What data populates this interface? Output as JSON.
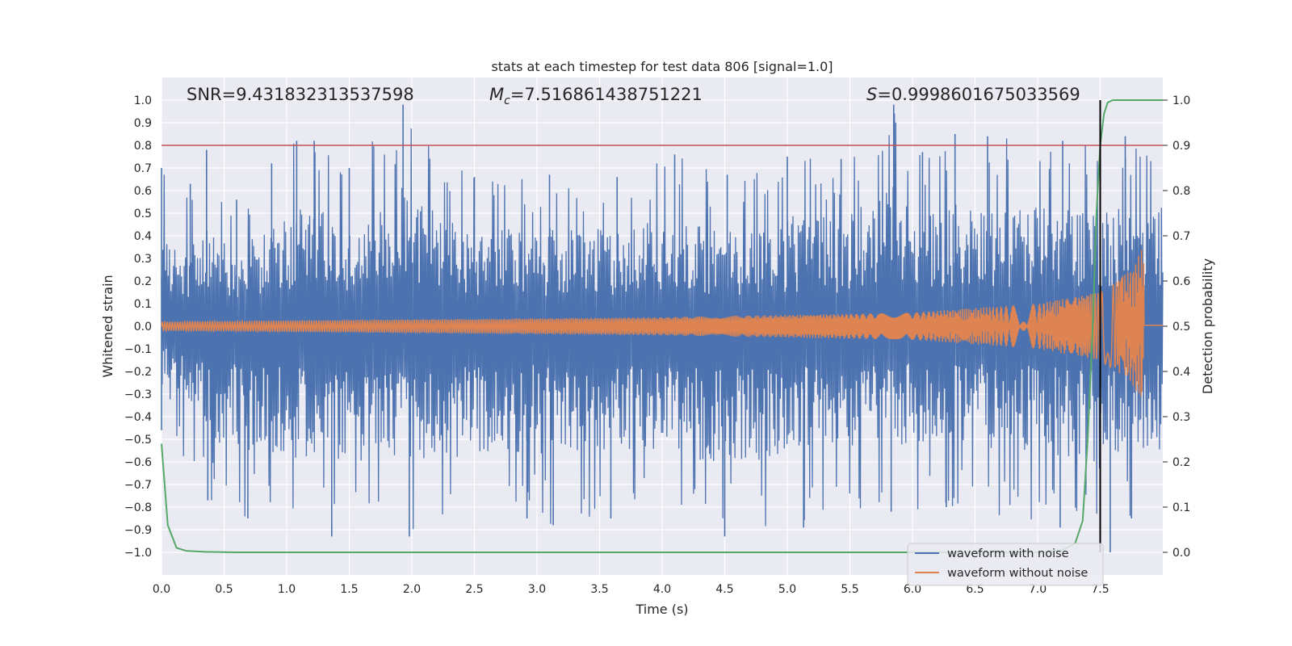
{
  "chart_data": {
    "type": "line",
    "title": "stats at each timestep for test data 806 [signal=1.0]",
    "xlabel": "Time (s)",
    "ylabel_left": "Whitened strain",
    "ylabel_right": "Detection probability",
    "xlim": [
      0.0,
      8.0
    ],
    "ylim_left": [
      -1.1,
      1.1
    ],
    "ylim_right": [
      -0.05,
      1.05
    ],
    "x_ticks": [
      "0.0",
      "0.5",
      "1.0",
      "1.5",
      "2.0",
      "2.5",
      "3.0",
      "3.5",
      "4.0",
      "4.5",
      "5.0",
      "5.5",
      "6.0",
      "6.5",
      "7.0",
      "7.5"
    ],
    "y_ticks_left": [
      "1.0",
      "0.9",
      "0.8",
      "0.7",
      "0.6",
      "0.5",
      "0.4",
      "0.3",
      "0.2",
      "0.1",
      "0.0",
      "−0.1",
      "−0.2",
      "−0.3",
      "−0.4",
      "−0.5",
      "−0.6",
      "−0.7",
      "−0.8",
      "−0.9",
      "−1.0"
    ],
    "y_ticks_right": [
      "1.0",
      "0.9",
      "0.8",
      "0.7",
      "0.6",
      "0.5",
      "0.4",
      "0.3",
      "0.2",
      "0.1",
      "0.0"
    ],
    "annotations": {
      "snr": "SNR=9.431832313537598",
      "mc_symbol": "M",
      "mc_sub": "c",
      "mc_value": "=7.516861438751221",
      "s_symbol": "S",
      "s_value": "=0.9998601675033569"
    },
    "threshold_line": {
      "axis": "right",
      "value": 0.9,
      "color": "#c44e52"
    },
    "vertical_marker": {
      "x": 7.5,
      "color": "#000000"
    },
    "series": [
      {
        "name": "waveform with noise",
        "axis": "left",
        "color": "#4c72b0",
        "envelope_peaks": [
          [
            0.0,
            0.7
          ],
          [
            0.23,
            0.63
          ],
          [
            0.36,
            0.78
          ],
          [
            0.6,
            0.56
          ],
          [
            0.88,
            0.72
          ],
          [
            1.08,
            0.82
          ],
          [
            1.22,
            0.82
          ],
          [
            1.5,
            0.7
          ],
          [
            1.93,
            0.98
          ],
          [
            2.5,
            0.66
          ],
          [
            3.1,
            0.67
          ],
          [
            3.64,
            0.66
          ],
          [
            4.1,
            0.76
          ],
          [
            4.52,
            0.67
          ],
          [
            5.0,
            0.75
          ],
          [
            5.43,
            0.74
          ],
          [
            5.85,
            0.98
          ],
          [
            6.08,
            0.77
          ],
          [
            6.34,
            0.85
          ],
          [
            6.6,
            0.84
          ],
          [
            7.2,
            0.82
          ],
          [
            7.7,
            0.84
          ]
        ],
        "envelope_troughs": [
          [
            0.0,
            -0.46
          ],
          [
            0.37,
            -0.77
          ],
          [
            0.69,
            -0.85
          ],
          [
            1.36,
            -0.93
          ],
          [
            1.98,
            -0.93
          ],
          [
            2.92,
            -0.85
          ],
          [
            3.13,
            -0.88
          ],
          [
            3.59,
            -0.85
          ],
          [
            4.5,
            -0.93
          ],
          [
            5.13,
            -0.89
          ],
          [
            5.83,
            -0.82
          ],
          [
            6.27,
            -0.8
          ],
          [
            7.18,
            -0.89
          ],
          [
            7.58,
            -1.0
          ],
          [
            7.75,
            -0.85
          ]
        ]
      },
      {
        "name": "waveform without noise",
        "axis": "left",
        "color": "#dd8452",
        "amplitude_by_time": [
          [
            0.0,
            0.02
          ],
          [
            4.0,
            0.04
          ],
          [
            6.0,
            0.06
          ],
          [
            7.0,
            0.1
          ],
          [
            7.5,
            0.15
          ],
          [
            7.75,
            0.25
          ],
          [
            7.85,
            0.36
          ]
        ],
        "end_time": 7.85
      },
      {
        "name": "detection probability",
        "axis": "right",
        "color": "#55a868",
        "x": [
          0.0,
          0.05,
          0.12,
          0.2,
          0.35,
          0.6,
          1.0,
          2.0,
          3.0,
          4.0,
          5.0,
          6.0,
          7.0,
          7.2,
          7.3,
          7.36,
          7.4,
          7.44,
          7.47,
          7.5,
          7.53,
          7.56,
          7.6,
          7.7,
          8.0
        ],
        "y": [
          0.24,
          0.06,
          0.01,
          0.003,
          0.001,
          0.0,
          0.0,
          0.0,
          0.0,
          0.0,
          0.0,
          0.0,
          0.0,
          0.005,
          0.02,
          0.07,
          0.25,
          0.5,
          0.75,
          0.9,
          0.97,
          0.995,
          1.0,
          1.0,
          1.0
        ]
      }
    ],
    "legend": {
      "placement": "lower-right",
      "entries": [
        "waveform with noise",
        "waveform without noise"
      ]
    }
  },
  "colors": {
    "background": "#ffffff",
    "axes_face": "#eaeaf2",
    "grid": "#ffffff",
    "noise": "#4c72b0",
    "clean": "#dd8452",
    "probability": "#55a868",
    "threshold": "#c44e52"
  }
}
